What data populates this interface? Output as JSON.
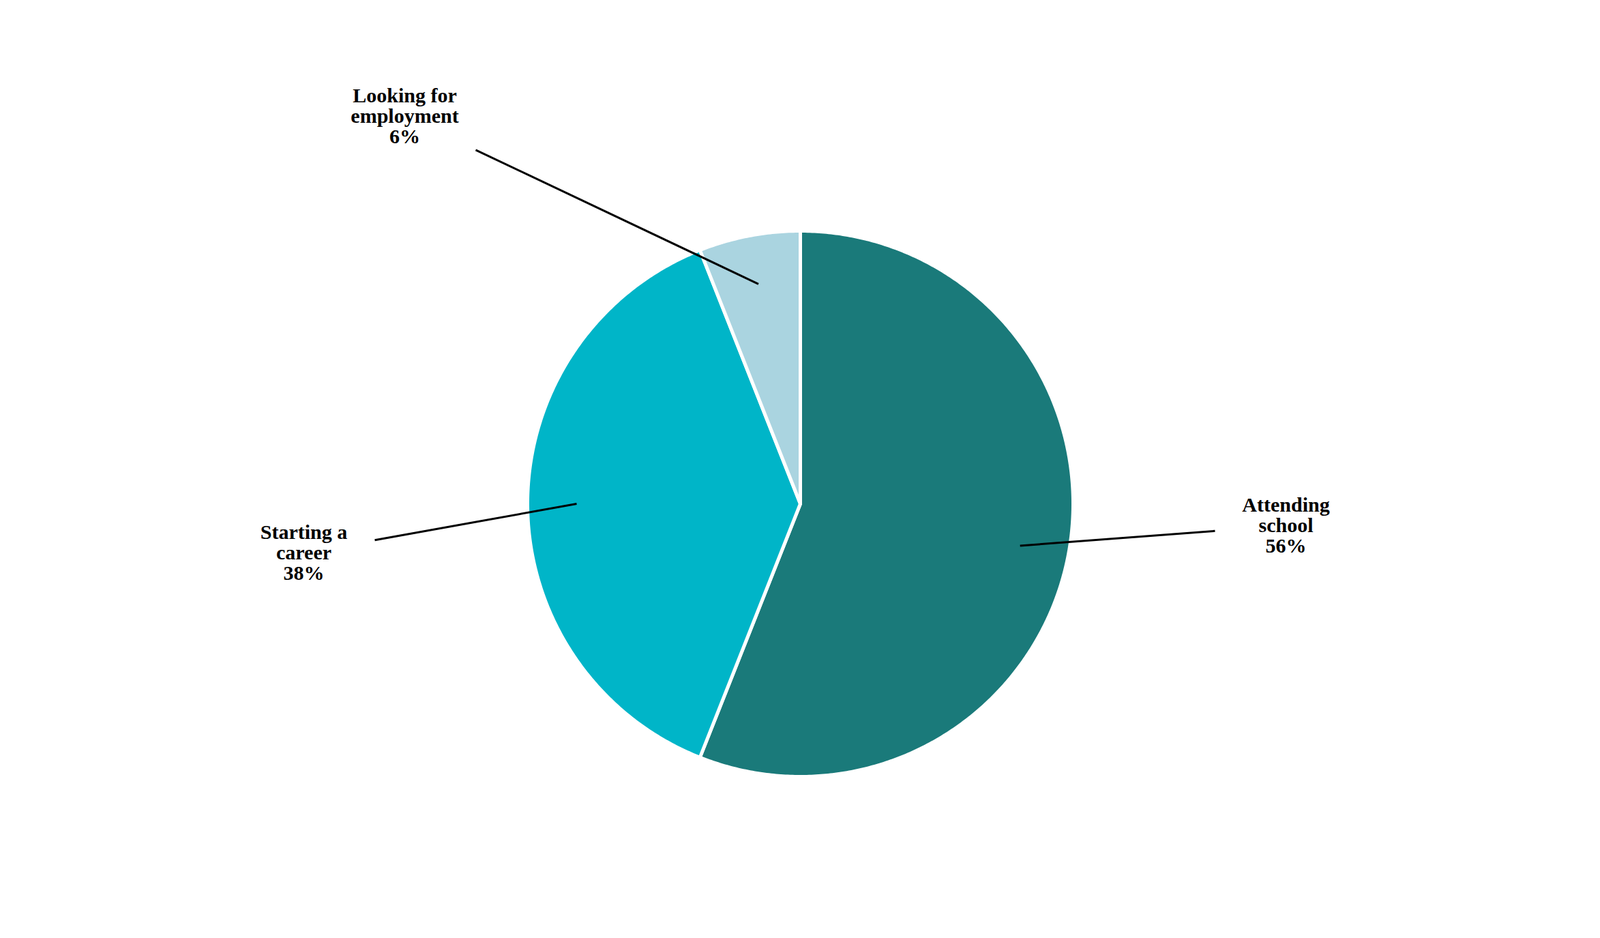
{
  "chart_data": {
    "type": "pie",
    "categories": [
      "Attending\nschool\n56%",
      "Starting a\ncareer\n38%",
      "Looking for\nemployment\n6%"
    ],
    "values": [
      56,
      38,
      6
    ],
    "colors": [
      "#1a7a7a",
      "#00b5c8",
      "#aad4e0"
    ]
  }
}
